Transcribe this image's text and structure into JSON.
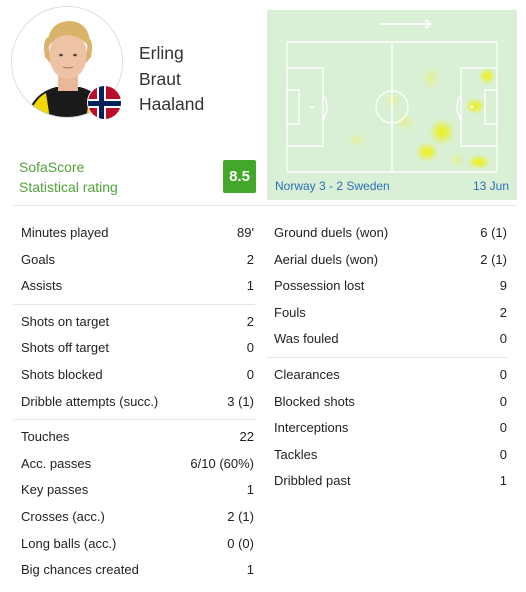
{
  "player": {
    "name_lines": [
      "Erling",
      "Braut",
      "Haaland"
    ],
    "flag": "Norway flag"
  },
  "rating": {
    "label_lines": [
      "SofaScore",
      "Statistical rating"
    ],
    "value": "8.5",
    "color": "#43a72a"
  },
  "match": {
    "label": "Norway 3 - 2 Sweden",
    "date": "13 Jun"
  },
  "stats_left": [
    [
      {
        "label": "Minutes played",
        "value": "89'"
      },
      {
        "label": "Goals",
        "value": "2"
      },
      {
        "label": "Assists",
        "value": "1"
      }
    ],
    [
      {
        "label": "Shots on target",
        "value": "2"
      },
      {
        "label": "Shots off target",
        "value": "0"
      },
      {
        "label": "Shots blocked",
        "value": "0"
      },
      {
        "label": "Dribble attempts (succ.)",
        "value": "3 (1)"
      }
    ],
    [
      {
        "label": "Touches",
        "value": "22"
      },
      {
        "label": "Acc. passes",
        "value": "6/10 (60%)"
      },
      {
        "label": "Key passes",
        "value": "1"
      },
      {
        "label": "Crosses (acc.)",
        "value": "2 (1)"
      },
      {
        "label": "Long balls (acc.)",
        "value": "0 (0)"
      },
      {
        "label": "Big chances created",
        "value": "1"
      }
    ]
  ],
  "stats_right": [
    [
      {
        "label": "Ground duels (won)",
        "value": "6 (1)"
      },
      {
        "label": "Aerial duels (won)",
        "value": "2 (1)"
      },
      {
        "label": "Possession lost",
        "value": "9"
      },
      {
        "label": "Fouls",
        "value": "2"
      },
      {
        "label": "Was fouled",
        "value": "0"
      }
    ],
    [
      {
        "label": "Clearances",
        "value": "0"
      },
      {
        "label": "Blocked shots",
        "value": "0"
      },
      {
        "label": "Interceptions",
        "value": "0"
      },
      {
        "label": "Tackles",
        "value": "0"
      },
      {
        "label": "Dribbled past",
        "value": "1"
      }
    ]
  ]
}
